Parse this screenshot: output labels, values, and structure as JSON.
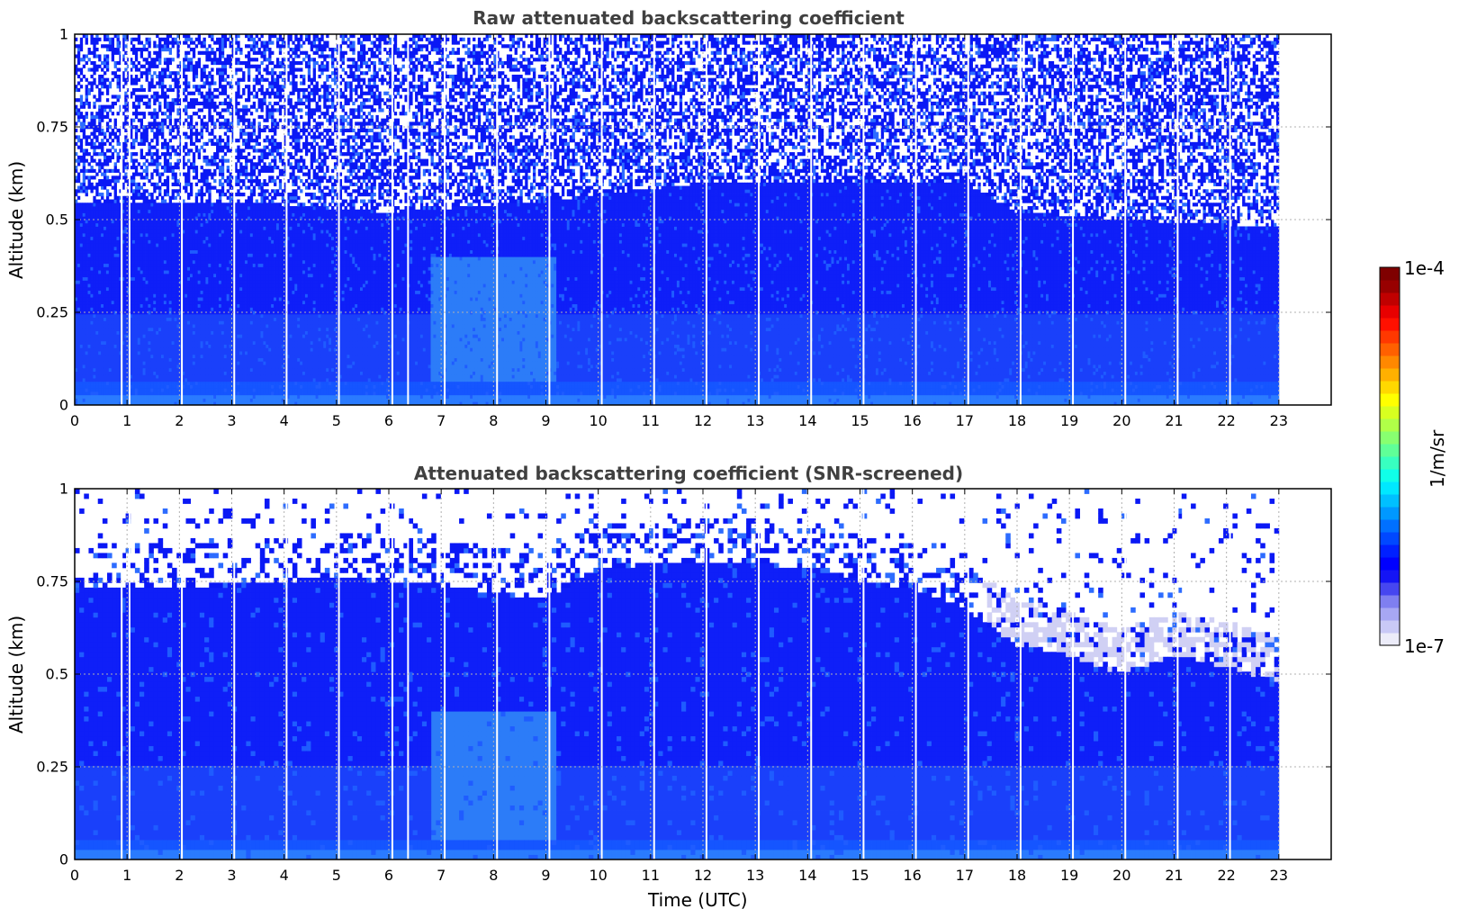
{
  "chart_data": [
    {
      "type": "heatmap",
      "title": "Raw attenuated backscattering coefficient",
      "xlabel": "",
      "ylabel": "Altitude (km)",
      "xlim": [
        0,
        24
      ],
      "ylim": [
        0,
        1
      ],
      "x_ticks": [
        "0",
        "1",
        "2",
        "3",
        "4",
        "5",
        "6",
        "7",
        "8",
        "9",
        "10",
        "11",
        "12",
        "13",
        "14",
        "15",
        "16",
        "17",
        "18",
        "19",
        "20",
        "21",
        "22",
        "23"
      ],
      "y_ticks": [
        "0",
        "0.25",
        "0.5",
        "0.75",
        "1"
      ],
      "y_tick_values": [
        0,
        0.25,
        0.5,
        0.75,
        1
      ],
      "data_end_time": 23,
      "grid": true,
      "noise_mode": "raw",
      "gap_times": [
        0.88,
        1.03,
        2.03,
        3.03,
        4.03,
        5.03,
        6.05,
        6.35,
        7.05,
        8.05,
        9.05,
        10.05,
        11.05,
        12.05,
        13.05,
        14.05,
        15.05,
        16.05,
        17.05,
        18.05,
        19.05,
        20.05,
        21.05,
        22.05
      ],
      "layer_top_km": [
        {
          "time": 0,
          "value": 0.55
        },
        {
          "time": 3,
          "value": 0.55
        },
        {
          "time": 6,
          "value": 0.52
        },
        {
          "time": 9,
          "value": 0.55
        },
        {
          "time": 12,
          "value": 0.6
        },
        {
          "time": 15,
          "value": 0.6
        },
        {
          "time": 17,
          "value": 0.6
        },
        {
          "time": 18,
          "value": 0.52
        },
        {
          "time": 20,
          "value": 0.5
        },
        {
          "time": 23,
          "value": 0.48
        }
      ]
    },
    {
      "type": "heatmap",
      "title": "Attenuated backscattering coefficient (SNR-screened)",
      "xlabel": "Time (UTC)",
      "ylabel": "Altitude (km)",
      "xlim": [
        0,
        24
      ],
      "ylim": [
        0,
        1
      ],
      "x_ticks": [
        "0",
        "1",
        "2",
        "3",
        "4",
        "5",
        "6",
        "7",
        "8",
        "9",
        "10",
        "11",
        "12",
        "13",
        "14",
        "15",
        "16",
        "17",
        "18",
        "19",
        "20",
        "21",
        "22",
        "23"
      ],
      "y_ticks": [
        "0",
        "0.25",
        "0.5",
        "0.75",
        "1"
      ],
      "y_tick_values": [
        0,
        0.25,
        0.5,
        0.75,
        1
      ],
      "data_end_time": 23,
      "grid": true,
      "noise_mode": "screened",
      "gap_times": [
        0.88,
        1.03,
        2.03,
        3.03,
        4.03,
        5.03,
        6.05,
        6.35,
        7.05,
        8.05,
        9.05,
        10.05,
        11.05,
        12.05,
        13.05,
        14.05,
        15.05,
        16.05,
        17.05,
        18.05,
        19.05,
        20.05,
        21.05,
        22.05
      ],
      "layer_top_km": [
        {
          "time": 0,
          "value": 0.74
        },
        {
          "time": 3,
          "value": 0.74
        },
        {
          "time": 5,
          "value": 0.76
        },
        {
          "time": 7,
          "value": 0.74
        },
        {
          "time": 9,
          "value": 0.7
        },
        {
          "time": 10,
          "value": 0.79
        },
        {
          "time": 12,
          "value": 0.8
        },
        {
          "time": 14,
          "value": 0.79
        },
        {
          "time": 15,
          "value": 0.75
        },
        {
          "time": 16,
          "value": 0.73
        },
        {
          "time": 17,
          "value": 0.68
        },
        {
          "time": 18,
          "value": 0.58
        },
        {
          "time": 19,
          "value": 0.55
        },
        {
          "time": 20,
          "value": 0.5
        },
        {
          "time": 21,
          "value": 0.55
        },
        {
          "time": 22,
          "value": 0.52
        },
        {
          "time": 23,
          "value": 0.48
        }
      ]
    }
  ],
  "colorbar": {
    "label": "1/m/sr",
    "max_label": "1e-4",
    "min_label": "1e-7",
    "colors": [
      "#ececf9",
      "#c9c9f6",
      "#a7a7f3",
      "#7f7ff0",
      "#4646f0",
      "#1414f5",
      "#0000ff",
      "#0020ff",
      "#0048ff",
      "#0070ff",
      "#0098ff",
      "#00c0ff",
      "#00e8ff",
      "#10ffe8",
      "#38ffc0",
      "#60ff98",
      "#88ff70",
      "#b0ff48",
      "#d8ff20",
      "#ffff00",
      "#ffd800",
      "#ffb000",
      "#ff8800",
      "#ff6000",
      "#ff3800",
      "#ff1000",
      "#e80000",
      "#c00000",
      "#980000",
      "#7f0000"
    ]
  }
}
